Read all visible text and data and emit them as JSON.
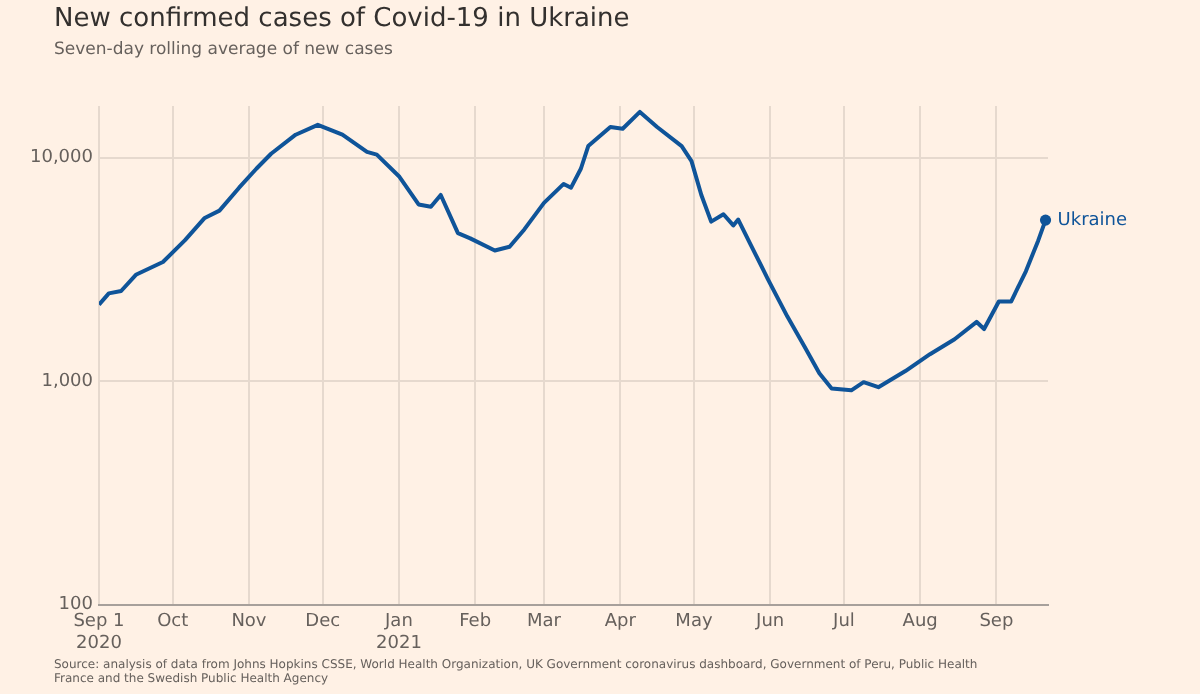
{
  "chart_data": {
    "type": "line",
    "title": "New confirmed cases of Covid-19 in Ukraine",
    "subtitle": "Seven-day rolling average of new cases",
    "annotations": [
      "Source: analysis of data from Johns Hopkins CSSE, World Health Organization, UK Government coronavirus dashboard, Government of Peru, Public Health France and the Swedish Public Health Agency"
    ],
    "log": "y",
    "grid": true,
    "legend": false,
    "line_style": "solid",
    "xlim": [
      "2020-09-01",
      "2021-09-22"
    ],
    "xticks": [
      {
        "value": "2020-09-01",
        "label": "Sep 1\n2020"
      },
      {
        "value": "2020-10-01",
        "label": "Oct"
      },
      {
        "value": "2020-11-01",
        "label": "Nov"
      },
      {
        "value": "2020-12-01",
        "label": "Dec"
      },
      {
        "value": "2021-01-01",
        "label": "Jan\n2021"
      },
      {
        "value": "2021-02-01",
        "label": "Feb"
      },
      {
        "value": "2021-03-01",
        "label": "Mar"
      },
      {
        "value": "2021-04-01",
        "label": "Apr"
      },
      {
        "value": "2021-05-01",
        "label": "May"
      },
      {
        "value": "2021-06-01",
        "label": "Jun"
      },
      {
        "value": "2021-07-01",
        "label": "Jul"
      },
      {
        "value": "2021-08-01",
        "label": "Aug"
      },
      {
        "value": "2021-09-01",
        "label": "Sep"
      }
    ],
    "ylim": [
      100,
      17000
    ],
    "yticks": [
      100,
      {
        "value": 1000,
        "label": "1,000"
      },
      {
        "value": 10000,
        "label": "10,000"
      }
    ],
    "x": [
      "2020-09-01",
      "2020-09-05",
      "2020-09-10",
      "2020-09-16",
      "2020-09-27",
      "2020-10-06",
      "2020-10-14",
      "2020-10-20",
      "2020-10-28",
      "2020-11-04",
      "2020-11-10",
      "2020-11-20",
      "2020-11-29",
      "2020-12-09",
      "2020-12-19",
      "2020-12-23",
      "2021-01-01",
      "2021-01-09",
      "2021-01-14",
      "2021-01-18",
      "2021-01-25",
      "2021-01-30",
      "2021-02-09",
      "2021-02-15",
      "2021-02-21",
      "2021-03-01",
      "2021-03-09",
      "2021-03-12",
      "2021-03-16",
      "2021-03-19",
      "2021-03-28",
      "2021-04-02",
      "2021-04-09",
      "2021-04-16",
      "2021-04-26",
      "2021-04-30",
      "2021-05-04",
      "2021-05-08",
      "2021-05-13",
      "2021-05-17",
      "2021-05-19",
      "2021-05-24",
      "2021-05-31",
      "2021-06-08",
      "2021-06-15",
      "2021-06-21",
      "2021-06-26",
      "2021-07-04",
      "2021-07-09",
      "2021-07-15",
      "2021-07-26",
      "2021-08-05",
      "2021-08-15",
      "2021-08-24",
      "2021-08-27",
      "2021-09-02",
      "2021-09-07",
      "2021-09-13",
      "2021-09-18",
      "2021-09-21"
    ],
    "series": [
      {
        "name": "Ukraine",
        "color": "#0f5499",
        "values": [
          2200,
          2470,
          2530,
          2990,
          3410,
          4270,
          5370,
          5790,
          7330,
          8910,
          10400,
          12650,
          14000,
          12650,
          10600,
          10300,
          8250,
          6170,
          6030,
          6800,
          4590,
          4350,
          3840,
          3990,
          4770,
          6270,
          7620,
          7330,
          8910,
          11250,
          13700,
          13450,
          16000,
          13700,
          11250,
          9640,
          6800,
          5170,
          5580,
          4970,
          5280,
          4090,
          2870,
          1945,
          1426,
          1085,
          927,
          910,
          990,
          940,
          1110,
          1320,
          1540,
          1840,
          1710,
          2270,
          2270,
          3100,
          4250,
          5250
        ]
      }
    ]
  }
}
